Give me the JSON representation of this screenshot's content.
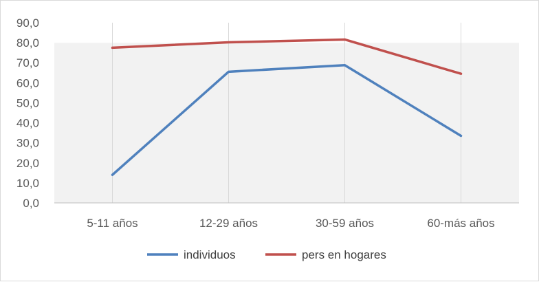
{
  "chart_data": {
    "type": "line",
    "title": "",
    "xlabel": "",
    "ylabel": "",
    "categories": [
      "5-11 años",
      "12-29 años",
      "30-59 años",
      "60-más años"
    ],
    "series": [
      {
        "name": "individuos",
        "color": "#4f81bd",
        "values": [
          14.0,
          65.5,
          68.8,
          33.5
        ]
      },
      {
        "name": "pers en hogares",
        "color": "#c0504d",
        "values": [
          77.5,
          80.2,
          81.6,
          64.5
        ]
      }
    ],
    "ylim": [
      0,
      90
    ],
    "yticks": [
      "0,0",
      "10,0",
      "20,0",
      "30,0",
      "40,0",
      "50,0",
      "60,0",
      "70,0",
      "80,0",
      "90,0"
    ],
    "grid": true,
    "plot_background": "#f2f2f2",
    "legend_position": "bottom"
  }
}
